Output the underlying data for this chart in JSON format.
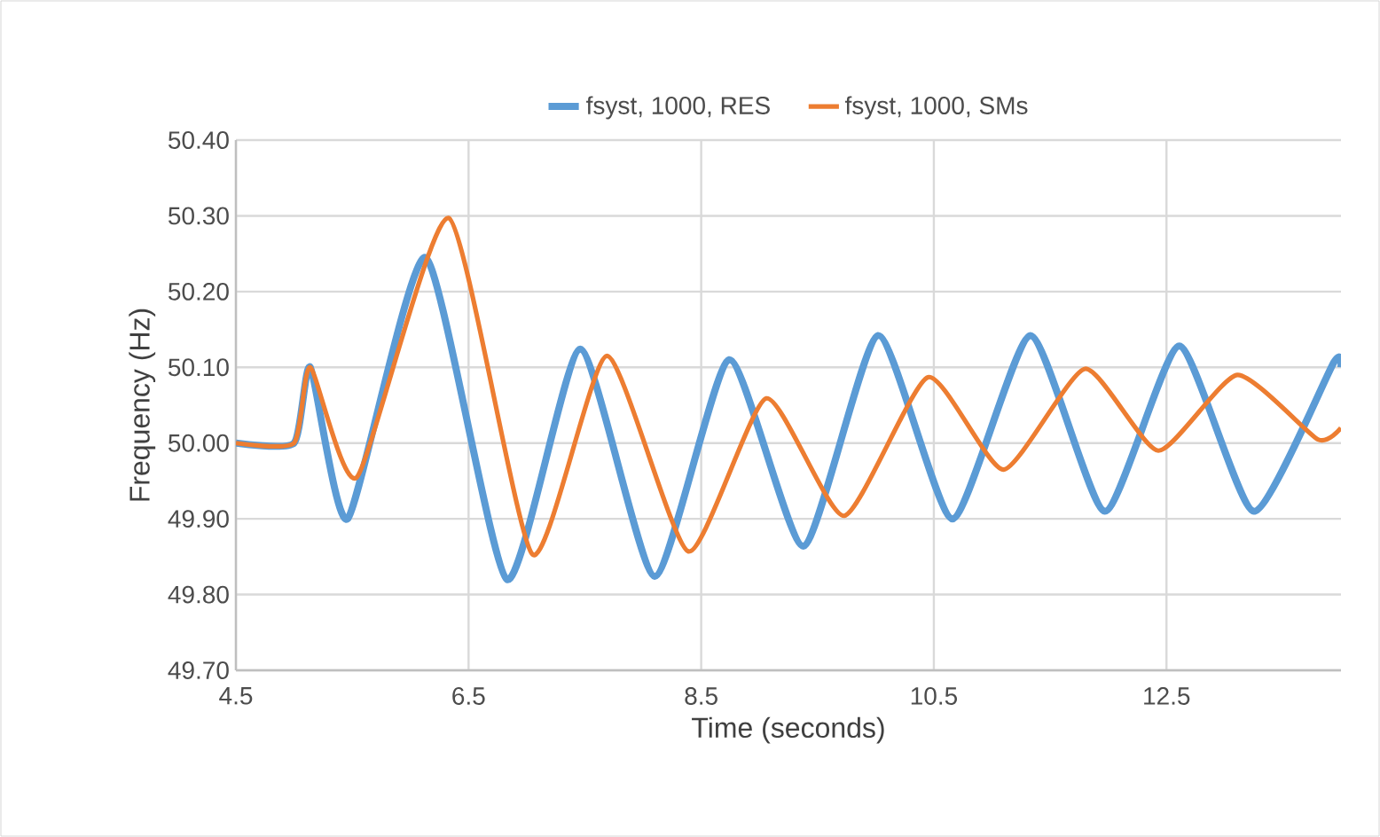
{
  "chart_data": {
    "type": "line",
    "xlabel": "Time (seconds)",
    "ylabel": "Frequency (Hz)",
    "xlim": [
      4.5,
      14
    ],
    "xticks": [
      4.5,
      6.5,
      8.5,
      10.5,
      12.5
    ],
    "ylim": [
      49.7,
      50.4
    ],
    "yticks": [
      {
        "value": 49.7,
        "label": "49.70"
      },
      {
        "value": 49.8,
        "label": "49.80"
      },
      {
        "value": 49.9,
        "label": "49.90"
      },
      {
        "value": 50.0,
        "label": "50.00"
      },
      {
        "value": 50.1,
        "label": "50.10"
      },
      {
        "value": 50.2,
        "label": "50.20"
      },
      {
        "value": 50.3,
        "label": "50.30"
      },
      {
        "value": 50.4,
        "label": "50.40"
      }
    ],
    "grid": true,
    "legend": "top",
    "marker": "none",
    "line_style": "solid",
    "series": [
      {
        "name": "fsyst, 1000, RES",
        "color": "#5b9bd5",
        "x": [
          4.5,
          5.0,
          5.14,
          5.46,
          6.13,
          6.83,
          7.46,
          8.1,
          8.74,
          9.38,
          10.02,
          10.66,
          11.33,
          11.97,
          12.61,
          13.25,
          13.94,
          14.0
        ],
        "values": [
          50.0,
          50.0,
          50.1,
          49.9,
          50.245,
          49.82,
          50.124,
          49.824,
          50.11,
          49.864,
          50.142,
          49.9,
          50.142,
          49.91,
          50.128,
          49.91,
          50.107,
          50.1
        ]
      },
      {
        "name": "fsyst, 1000, SMs",
        "color": "#ed7d31",
        "x": [
          4.5,
          5.0,
          5.14,
          5.54,
          6.33,
          7.05,
          7.69,
          8.39,
          9.06,
          9.73,
          10.45,
          11.1,
          11.8,
          12.43,
          13.11,
          13.8,
          14.0
        ],
        "values": [
          50.0,
          50.0,
          50.1,
          49.955,
          50.297,
          49.853,
          50.115,
          49.857,
          50.059,
          49.904,
          50.087,
          49.965,
          50.098,
          49.99,
          50.09,
          50.005,
          50.02
        ]
      }
    ]
  }
}
